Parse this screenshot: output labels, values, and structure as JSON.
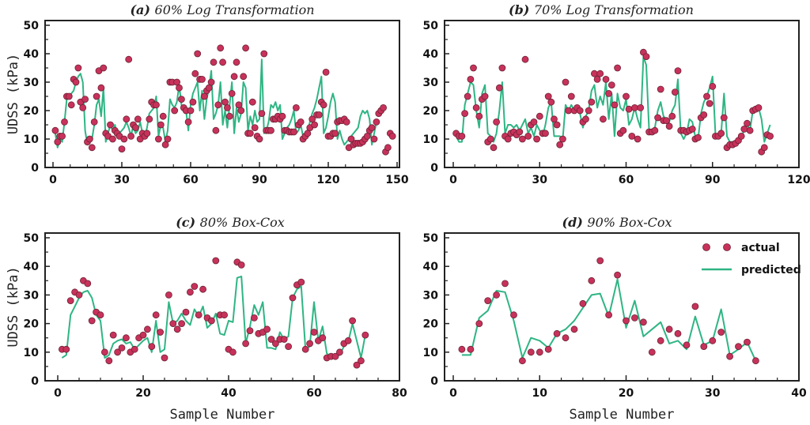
{
  "chart_data": [
    {
      "type": "line",
      "title_prefix": "(a)",
      "title": "60% Log Transformation",
      "xlabel": "",
      "ylabel": "UDSS (kPa)",
      "xlim": [
        0,
        150
      ],
      "ylim": [
        0,
        50
      ],
      "xticks": [
        0,
        30,
        60,
        90,
        120,
        150
      ],
      "yticks": [
        0,
        10,
        20,
        30,
        40,
        50
      ],
      "legend": false,
      "series": [
        {
          "name": "actual",
          "kind": "scatter",
          "y": [
            13,
            9,
            11,
            11,
            16,
            25,
            25,
            22,
            31,
            30,
            35,
            23,
            21,
            24,
            9,
            10,
            7,
            16,
            25,
            34,
            28,
            35,
            12,
            11,
            15,
            10,
            13,
            12,
            11,
            6.5,
            10,
            17,
            38,
            11,
            15,
            14,
            17,
            10,
            12,
            11,
            12,
            17,
            23,
            22,
            22,
            10,
            15,
            18,
            8,
            10,
            30,
            30,
            20,
            30,
            28,
            24,
            21,
            20,
            16,
            20,
            23,
            33,
            40,
            31,
            31,
            25,
            27,
            28,
            30,
            37,
            13,
            22,
            42,
            37,
            23,
            21,
            18,
            26,
            32,
            37,
            22,
            20,
            32,
            42,
            12,
            12,
            23,
            14,
            11,
            10,
            19,
            40,
            13,
            13,
            13,
            17,
            17,
            18,
            17,
            18,
            13,
            13,
            12.5,
            12.5,
            12.5,
            21,
            15,
            16,
            10,
            11,
            12,
            14,
            17,
            15,
            18.5,
            18.5,
            23,
            22,
            33.5,
            11,
            11,
            12,
            12,
            16,
            16.5,
            16.5,
            17,
            16,
            7,
            10,
            8,
            8.5,
            8.5,
            8.5,
            9,
            10,
            11,
            13,
            14,
            10,
            16,
            19,
            20,
            21,
            5.5,
            7,
            12,
            11
          ]
        },
        {
          "name": "predicted",
          "kind": "line",
          "y": [
            12,
            7,
            10,
            9,
            16,
            24,
            25,
            26,
            27,
            30,
            32,
            33,
            30,
            13,
            8,
            9,
            10,
            15,
            22,
            24,
            18,
            28,
            9,
            12,
            15,
            13,
            15,
            11,
            12,
            13,
            14,
            16,
            14,
            11,
            15,
            12,
            13,
            16,
            12,
            11,
            14,
            19,
            20,
            21,
            25,
            11,
            15,
            14,
            9,
            13,
            24,
            22,
            21,
            23,
            29,
            22,
            20,
            20,
            13,
            22,
            26,
            28,
            30,
            20,
            27,
            17,
            24,
            28,
            34,
            17,
            19,
            22,
            30,
            15,
            20,
            14,
            22,
            30,
            12,
            21,
            16,
            19,
            30,
            28,
            13,
            18,
            15,
            20,
            16,
            17,
            38,
            12,
            13,
            16,
            22,
            21,
            23,
            20,
            22,
            10,
            12,
            14,
            15,
            17,
            20,
            12,
            13,
            15,
            11,
            12,
            13,
            16,
            19,
            21,
            24,
            28,
            32,
            12,
            14,
            18,
            23,
            26,
            23,
            10,
            13,
            10,
            8,
            9,
            10,
            11,
            12,
            13,
            14,
            18,
            20,
            19,
            20,
            17,
            8,
            12,
            16
          ]
        }
      ]
    },
    {
      "type": "line",
      "title_prefix": "(b)",
      "title": "70% Log Transformation",
      "xlabel": "",
      "ylabel": "",
      "xlim": [
        0,
        120
      ],
      "ylim": [
        0,
        50
      ],
      "xticks": [
        0,
        30,
        60,
        90,
        120
      ],
      "yticks": [
        0,
        10,
        20,
        30,
        40,
        50
      ],
      "legend": false,
      "series": [
        {
          "name": "actual",
          "kind": "scatter",
          "y": [
            12,
            11,
            11,
            19,
            25,
            31,
            35,
            21,
            18,
            24,
            25,
            9,
            10,
            7,
            16,
            28,
            35,
            11,
            10,
            12,
            12.5,
            11.5,
            12.5,
            10,
            38,
            11,
            15,
            16,
            10,
            18,
            12,
            12,
            25,
            23,
            17,
            15,
            8,
            10,
            30,
            20,
            25,
            20,
            21,
            20,
            16,
            17,
            20,
            23,
            33,
            31,
            33,
            17,
            31,
            26,
            29,
            22,
            35,
            12,
            13,
            25,
            20.5,
            11,
            21,
            10,
            21,
            40.5,
            39,
            12.5,
            12.5,
            13,
            17.5,
            27.5,
            16.5,
            16.5,
            14.5,
            18,
            26.5,
            34,
            13,
            13,
            12.5,
            13,
            13.5,
            10,
            10.5,
            17.5,
            18.5,
            25,
            22.5,
            28.5,
            11,
            11,
            12,
            17.5,
            7,
            8,
            8,
            8.5,
            9.5,
            11,
            13.5,
            15.5,
            13,
            20,
            20.5,
            21,
            5.5,
            7,
            11.5,
            11
          ]
        },
        {
          "name": "predicted",
          "kind": "line",
          "y": [
            11,
            9,
            9,
            22,
            26,
            30,
            29,
            20,
            14,
            26,
            29,
            12,
            11,
            9,
            12,
            20,
            30,
            12,
            15,
            15,
            14,
            15,
            13,
            15,
            17,
            12,
            14,
            11,
            15,
            13,
            11,
            15,
            21,
            23,
            11,
            11,
            11,
            10,
            22,
            20,
            22,
            20,
            21,
            19,
            14,
            18,
            20,
            27,
            29,
            21,
            25,
            22,
            30,
            17,
            26,
            11,
            26,
            21,
            20,
            24,
            15,
            17,
            21,
            17,
            14,
            39,
            36,
            13,
            13,
            14,
            20,
            23,
            18,
            17,
            16,
            20,
            22,
            31,
            12,
            10,
            12,
            17,
            16,
            11,
            10,
            19,
            23,
            25,
            28,
            32,
            12,
            11,
            12,
            26,
            11,
            9,
            9,
            9,
            10,
            11,
            13,
            15,
            13,
            20,
            21,
            21,
            17,
            9,
            12,
            15
          ]
        }
      ]
    },
    {
      "type": "line",
      "title_prefix": "(c)",
      "title": "80% Box-Cox",
      "xlabel": "Sample Number",
      "ylabel": "UDSS (kPa)",
      "xlim": [
        0,
        80
      ],
      "ylim": [
        0,
        50
      ],
      "xticks": [
        0,
        20,
        40,
        60,
        80
      ],
      "yticks": [
        0,
        10,
        20,
        30,
        40,
        50
      ],
      "legend": false,
      "series": [
        {
          "name": "actual",
          "kind": "scatter",
          "y": [
            11,
            11,
            28,
            31,
            30,
            35,
            34,
            21,
            24,
            23,
            10,
            7,
            16,
            10,
            11.5,
            15,
            10,
            11,
            15,
            16,
            18,
            12,
            23,
            17,
            8,
            30,
            20,
            18,
            20,
            24,
            31,
            33,
            23,
            32,
            22,
            21,
            42,
            23,
            23,
            11,
            10,
            41.5,
            40.5,
            13,
            17.5,
            22,
            16.5,
            17,
            18,
            14.5,
            13,
            14.5,
            14.5,
            12,
            29,
            33.5,
            34.5,
            11,
            13,
            17,
            14,
            15,
            8,
            8.5,
            8.5,
            10,
            13,
            14,
            21,
            5.5,
            7,
            16
          ]
        },
        {
          "name": "predicted",
          "kind": "line",
          "y": [
            8,
            9,
            23,
            26,
            29,
            31,
            31.5,
            29,
            23,
            21,
            8,
            9,
            13,
            14,
            14.5,
            13,
            13.5,
            11,
            12.5,
            14,
            15,
            10,
            21,
            10,
            11,
            27.5,
            20,
            21,
            23.5,
            21,
            19.5,
            25,
            22.5,
            26,
            18.5,
            20,
            23.5,
            16.5,
            16,
            21,
            20.5,
            36,
            36.5,
            13,
            19,
            26.5,
            23,
            27.5,
            11.5,
            11.5,
            11,
            17,
            14.5,
            15.5,
            29,
            32,
            33,
            11,
            12,
            27.5,
            14,
            19,
            9.5,
            8.5,
            8.5,
            9,
            12,
            13.5,
            20,
            14,
            8,
            16
          ]
        }
      ]
    },
    {
      "type": "line",
      "title_prefix": "(d)",
      "title": "90% Box-Cox",
      "xlabel": "Sample Number",
      "ylabel": "",
      "xlim": [
        0,
        40
      ],
      "ylim": [
        0,
        50
      ],
      "xticks": [
        0,
        10,
        20,
        30,
        40
      ],
      "yticks": [
        0,
        10,
        20,
        30,
        40,
        50
      ],
      "legend": true,
      "legend_position": "top-right",
      "legend_entries": [
        "actual",
        "predicted"
      ],
      "series": [
        {
          "name": "actual",
          "kind": "scatter",
          "y": [
            11,
            11,
            20,
            28,
            30,
            34,
            23,
            7,
            10,
            10,
            11,
            16.5,
            15,
            18,
            27,
            35,
            42,
            23,
            37,
            21,
            22,
            20.5,
            10,
            14,
            18,
            16.5,
            12.5,
            26,
            12,
            14,
            17,
            8.5,
            12,
            13.5,
            7
          ]
        },
        {
          "name": "predicted",
          "kind": "line",
          "y": [
            9,
            9,
            22,
            24.5,
            31.5,
            31,
            21,
            8,
            15,
            14,
            11.5,
            16.5,
            18,
            21,
            25.5,
            30,
            30.5,
            22.5,
            35.5,
            18.5,
            28,
            15.5,
            18,
            20.5,
            13,
            14,
            11,
            22.5,
            12.5,
            14,
            25,
            9,
            11,
            13.5,
            7
          ]
        }
      ]
    }
  ],
  "colors": {
    "actual_fill": "#c8325a",
    "actual_stroke": "#6b2236",
    "predicted_line": "#2fb584",
    "frame": "#222222"
  }
}
